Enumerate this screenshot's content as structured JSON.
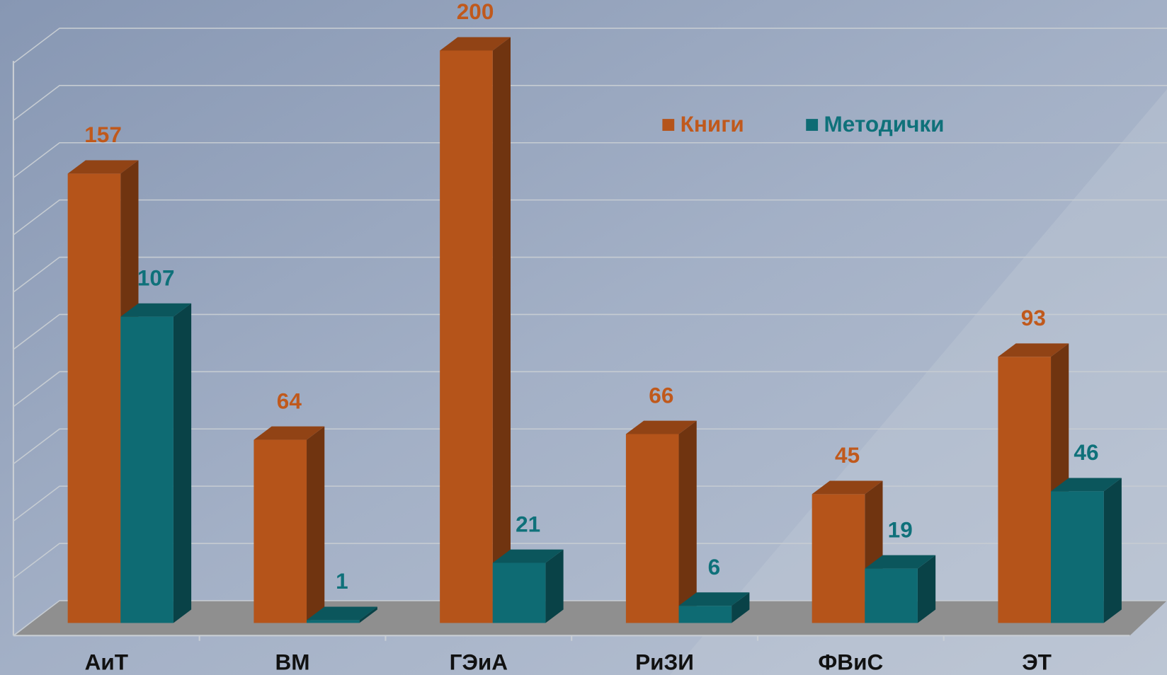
{
  "chart_data": {
    "type": "bar",
    "categories": [
      "АиТ",
      "ВМ",
      "ГЭиА",
      "РиЗИ",
      "ФВиС",
      "ЭТ"
    ],
    "series": [
      {
        "name": "Книги",
        "color": "#b5541a",
        "values": [
          157,
          64,
          200,
          66,
          45,
          93
        ]
      },
      {
        "name": "Методички",
        "color": "#0e6b73",
        "values": [
          107,
          1,
          21,
          6,
          19,
          46
        ]
      }
    ],
    "ylim": [
      0,
      200
    ],
    "yticks": [
      0,
      20,
      40,
      60,
      80,
      100,
      120,
      140,
      160,
      180,
      200
    ],
    "grid": true
  }
}
